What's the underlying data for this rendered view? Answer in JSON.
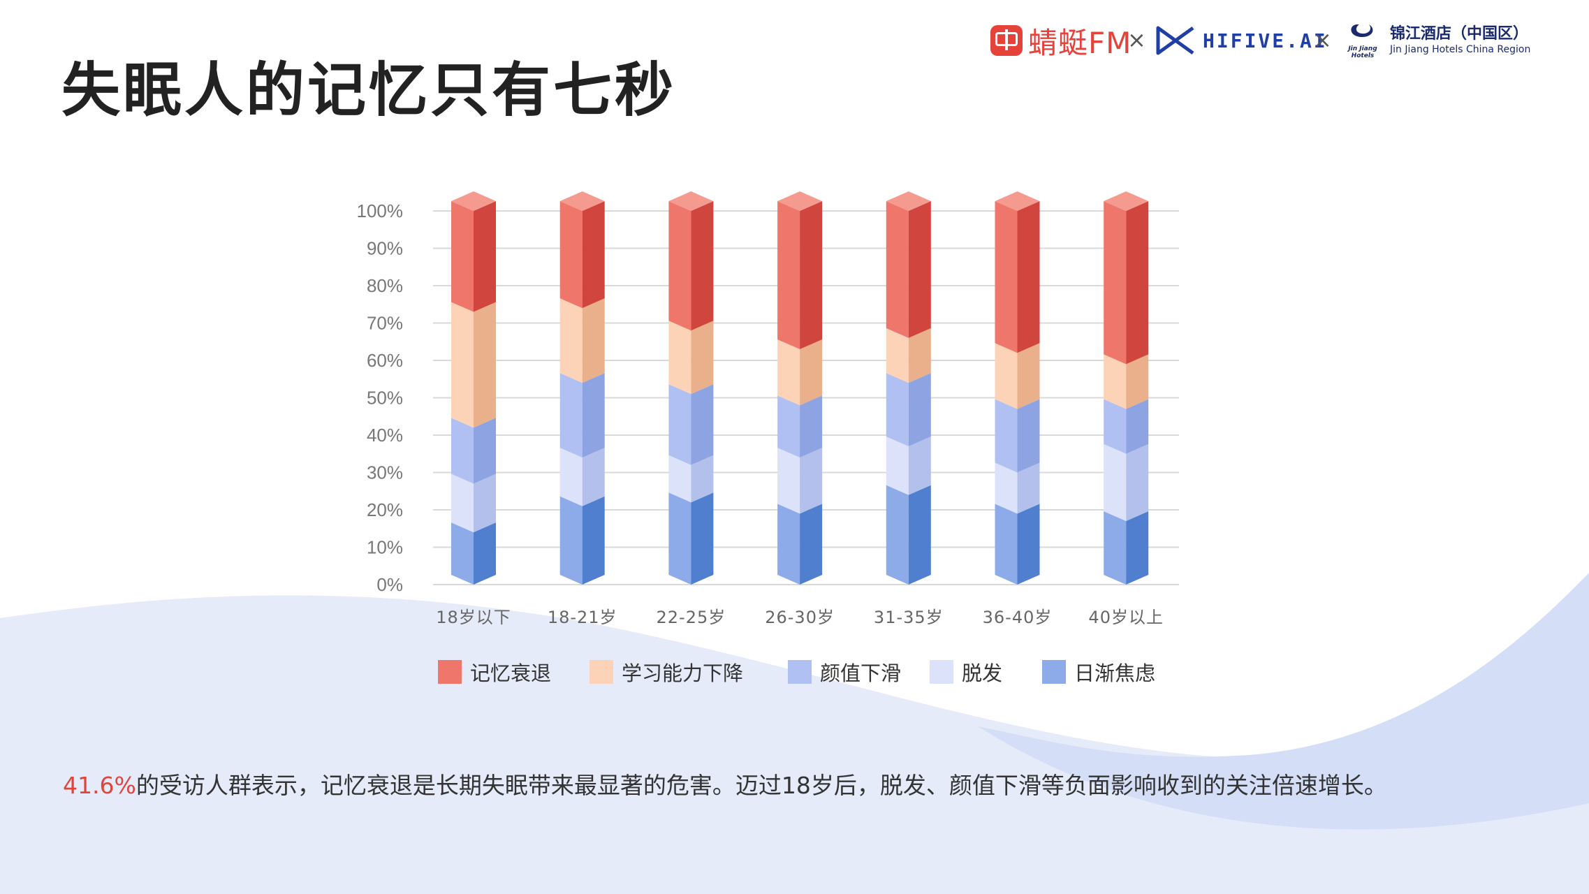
{
  "page": {
    "title": "失眠人的记忆只有七秒",
    "caption": {
      "highlight": "41.6%",
      "text": "的受访人群表示，记忆衰退是长期失眠带来最显著的危害。迈过18岁后，脱发、颜值下滑等负面影响收到的关注倍速增长。"
    }
  },
  "logos": {
    "qingting": "蜻蜓FM",
    "times_symbol": "×",
    "hifive": "HIFIVE.AI",
    "jinjiang_name": "锦江酒店（中国区）",
    "jinjiang_sub": "Jin Jiang Hotels China Region",
    "jinjiang_mark": "Jin Jiang Hotels"
  },
  "colors": {
    "accent_red": "#e0453c",
    "wave_light": "#e6ebfa",
    "wave_dark": "#d5def7"
  },
  "chart_data": {
    "type": "bar",
    "stacked": true,
    "style": "3d-column",
    "categories": [
      "18岁以下",
      "18-21岁",
      "22-25岁",
      "26-30岁",
      "31-35岁",
      "36-40岁",
      "40岁以上"
    ],
    "series": [
      {
        "name": "日渐焦虑",
        "values": [
          14,
          21,
          22,
          19,
          24,
          19,
          17
        ],
        "color_front": "#8cabe8",
        "color_side": "#4f7fce"
      },
      {
        "name": "脱发",
        "values": [
          13,
          13,
          10,
          15,
          13,
          11,
          18
        ],
        "color_front": "#dbe2fa",
        "color_side": "#b3c0ec"
      },
      {
        "name": "颜值下滑",
        "values": [
          15,
          20,
          19,
          14,
          17,
          17,
          12
        ],
        "color_front": "#b0c0f2",
        "color_side": "#8ea3e2"
      },
      {
        "name": "学习能力下降",
        "values": [
          31,
          20,
          17,
          15,
          12,
          15,
          12
        ],
        "color_front": "#fdd3b8",
        "color_side": "#e9b08b"
      },
      {
        "name": "记忆衰退",
        "values": [
          27,
          26,
          32,
          37,
          34,
          38,
          41
        ],
        "color_front": "#ef766a",
        "color_side": "#d0453d"
      }
    ],
    "legend_order": [
      "记忆衰退",
      "学习能力下降",
      "颜值下滑",
      "脱发",
      "日渐焦虑"
    ],
    "y_ticks": [
      "0%",
      "10%",
      "20%",
      "30%",
      "40%",
      "50%",
      "60%",
      "70%",
      "80%",
      "90%",
      "100%"
    ],
    "ylim": [
      0,
      100
    ],
    "grid": true,
    "legend_position": "bottom",
    "title": "",
    "xlabel": "",
    "ylabel": ""
  }
}
